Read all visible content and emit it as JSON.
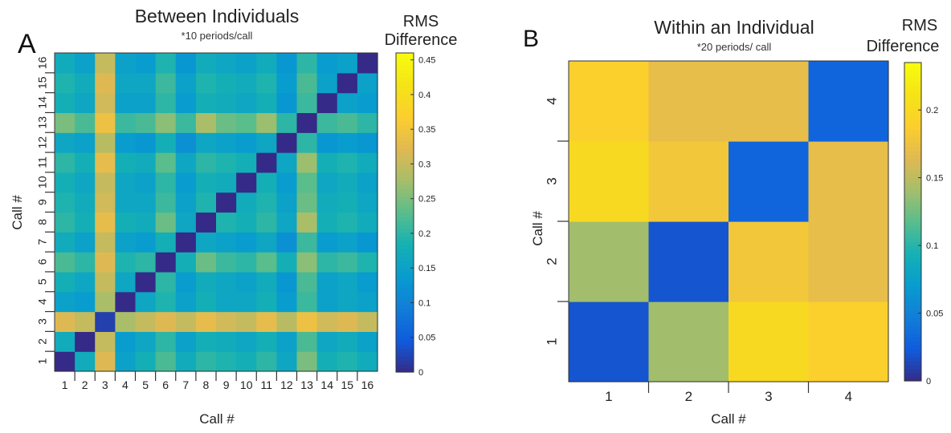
{
  "chart_data": [
    {
      "type": "heatmap",
      "panel_label": "A",
      "title": "Between Individuals",
      "subtitle": "*10 periods/call",
      "xlabel": "Call #",
      "ylabel": "Call #",
      "x_ticks": [
        "1",
        "2",
        "3",
        "4",
        "5",
        "6",
        "7",
        "8",
        "9",
        "10",
        "11",
        "12",
        "13",
        "14",
        "15",
        "16"
      ],
      "y_ticks": [
        "1",
        "2",
        "3",
        "4",
        "5",
        "6",
        "7",
        "8",
        "9",
        "10",
        "11",
        "12",
        "13",
        "14",
        "15",
        "16"
      ],
      "colorbar": {
        "title_line1": "RMS",
        "title_line2": "Difference",
        "range": [
          0,
          0.46
        ],
        "ticks": [
          0,
          0.05,
          0.1,
          0.15,
          0.2,
          0.25,
          0.3,
          0.35,
          0.4,
          0.45
        ],
        "tick_labels": [
          "0",
          "0.05",
          "0.1",
          "0.15",
          "0.2",
          "0.25",
          "0.3",
          "0.35",
          "0.4",
          "0.45"
        ]
      },
      "cell_values": [
        [
          0.0,
          0.17,
          0.32,
          0.15,
          0.18,
          0.22,
          0.17,
          0.2,
          0.19,
          0.18,
          0.2,
          0.16,
          0.25,
          0.18,
          0.19,
          0.17
        ],
        [
          0.17,
          0.0,
          0.3,
          0.14,
          0.16,
          0.2,
          0.15,
          0.18,
          0.17,
          0.16,
          0.18,
          0.15,
          0.22,
          0.16,
          0.17,
          0.15
        ],
        [
          0.32,
          0.3,
          0.02,
          0.28,
          0.3,
          0.32,
          0.3,
          0.33,
          0.31,
          0.3,
          0.33,
          0.29,
          0.34,
          0.31,
          0.32,
          0.3
        ],
        [
          0.15,
          0.14,
          0.28,
          0.0,
          0.16,
          0.19,
          0.15,
          0.18,
          0.16,
          0.16,
          0.18,
          0.14,
          0.21,
          0.15,
          0.16,
          0.15
        ],
        [
          0.18,
          0.16,
          0.3,
          0.16,
          0.0,
          0.2,
          0.14,
          0.17,
          0.16,
          0.15,
          0.17,
          0.13,
          0.22,
          0.15,
          0.16,
          0.14
        ],
        [
          0.22,
          0.2,
          0.32,
          0.19,
          0.2,
          0.0,
          0.18,
          0.24,
          0.21,
          0.2,
          0.23,
          0.18,
          0.26,
          0.2,
          0.21,
          0.19
        ],
        [
          0.17,
          0.15,
          0.3,
          0.15,
          0.14,
          0.18,
          0.0,
          0.16,
          0.15,
          0.14,
          0.16,
          0.12,
          0.21,
          0.14,
          0.15,
          0.13
        ],
        [
          0.2,
          0.18,
          0.33,
          0.18,
          0.17,
          0.24,
          0.16,
          0.0,
          0.19,
          0.18,
          0.2,
          0.16,
          0.28,
          0.18,
          0.19,
          0.17
        ],
        [
          0.19,
          0.17,
          0.31,
          0.16,
          0.16,
          0.21,
          0.15,
          0.19,
          0.0,
          0.17,
          0.19,
          0.15,
          0.24,
          0.17,
          0.18,
          0.16
        ],
        [
          0.18,
          0.16,
          0.3,
          0.16,
          0.15,
          0.2,
          0.14,
          0.18,
          0.17,
          0.0,
          0.18,
          0.14,
          0.23,
          0.16,
          0.17,
          0.15
        ],
        [
          0.2,
          0.18,
          0.33,
          0.18,
          0.17,
          0.23,
          0.16,
          0.2,
          0.19,
          0.18,
          0.0,
          0.16,
          0.27,
          0.18,
          0.19,
          0.17
        ],
        [
          0.16,
          0.15,
          0.29,
          0.14,
          0.13,
          0.18,
          0.12,
          0.16,
          0.15,
          0.14,
          0.16,
          0.0,
          0.2,
          0.13,
          0.14,
          0.13
        ],
        [
          0.25,
          0.22,
          0.34,
          0.21,
          0.22,
          0.26,
          0.21,
          0.28,
          0.24,
          0.23,
          0.27,
          0.2,
          0.0,
          0.21,
          0.22,
          0.2
        ],
        [
          0.18,
          0.16,
          0.31,
          0.15,
          0.15,
          0.2,
          0.14,
          0.18,
          0.17,
          0.16,
          0.18,
          0.13,
          0.21,
          0.0,
          0.15,
          0.14
        ],
        [
          0.19,
          0.17,
          0.32,
          0.16,
          0.16,
          0.21,
          0.15,
          0.19,
          0.18,
          0.17,
          0.19,
          0.14,
          0.22,
          0.15,
          0.0,
          0.15
        ],
        [
          0.17,
          0.15,
          0.3,
          0.15,
          0.14,
          0.19,
          0.13,
          0.17,
          0.16,
          0.15,
          0.17,
          0.13,
          0.2,
          0.14,
          0.15,
          0.0
        ]
      ]
    },
    {
      "type": "heatmap",
      "panel_label": "B",
      "title": "Within an Individual",
      "subtitle": "*20 periods/ call",
      "xlabel": "Call #",
      "ylabel": "Call #",
      "x_ticks": [
        "1",
        "2",
        "3",
        "4"
      ],
      "y_ticks": [
        "1",
        "2",
        "3",
        "4"
      ],
      "colorbar": {
        "title_line1": "RMS",
        "title_line2": "Difference",
        "range": [
          0,
          0.235
        ],
        "ticks": [
          0,
          0.05,
          0.1,
          0.15,
          0.2
        ],
        "tick_labels": [
          "0",
          "0.05",
          "0.1",
          "0.15",
          "0.2"
        ]
      },
      "cell_values": [
        [
          0.02,
          0.14,
          0.2,
          0.19
        ],
        [
          0.14,
          0.02,
          0.18,
          0.17
        ],
        [
          0.2,
          0.18,
          0.03,
          0.17
        ],
        [
          0.19,
          0.17,
          0.17,
          0.03
        ]
      ]
    }
  ]
}
